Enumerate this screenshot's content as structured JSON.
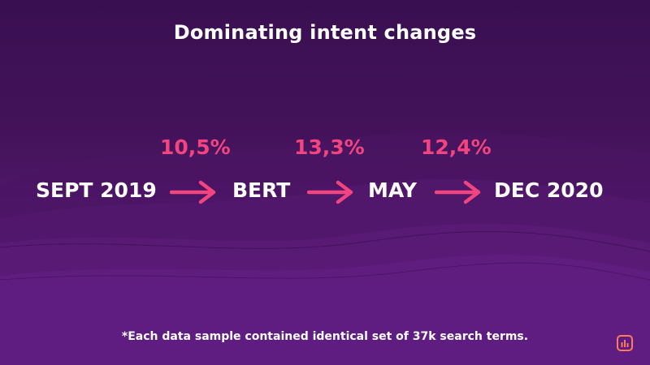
{
  "title": "Dominating intent changes",
  "stages": [
    "SEPT 2019",
    "BERT",
    "MAY",
    "DEC 2020"
  ],
  "changes": [
    "10,5%",
    "13,3%",
    "12,4%"
  ],
  "footnote": "*Each data sample contained identical set of 37k search terms.",
  "colors": {
    "accent": "#f2457f",
    "text": "#ffffff",
    "bg_top": "#3a0f52",
    "bg_bottom": "#5e1e7e"
  },
  "icons": {
    "arrow": "arrow-right-icon",
    "logo": "bar-chart-logo-icon"
  }
}
